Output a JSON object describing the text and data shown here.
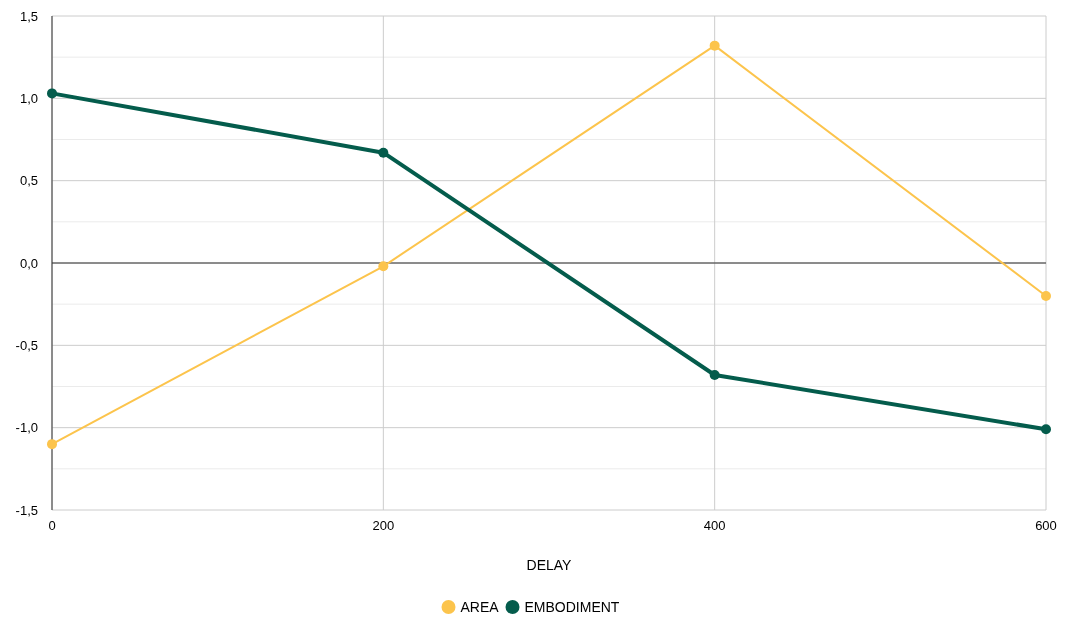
{
  "chart_data": {
    "type": "line",
    "xlabel": "DELAY",
    "x": [
      0,
      200,
      400,
      600
    ],
    "xlim": [
      0,
      600
    ],
    "xticks": [
      0,
      200,
      400,
      600
    ],
    "ylim": [
      -1.5,
      1.5
    ],
    "yticks": [
      {
        "value": -1.5,
        "label": "-1,5"
      },
      {
        "value": -1.25,
        "label": null
      },
      {
        "value": -1,
        "label": "-1,0"
      },
      {
        "value": -0.75,
        "label": null
      },
      {
        "value": -0.5,
        "label": "-0,5"
      },
      {
        "value": -0.25,
        "label": null
      },
      {
        "value": 0,
        "label": "0,0"
      },
      {
        "value": 0.25,
        "label": null
      },
      {
        "value": 0.5,
        "label": "0,5"
      },
      {
        "value": 0.75,
        "label": null
      },
      {
        "value": 1,
        "label": "1,0"
      },
      {
        "value": 1.25,
        "label": null
      },
      {
        "value": 1.5,
        "label": "1,5"
      }
    ],
    "grid": true,
    "legend": "bottom",
    "marker": "circle",
    "line_style": "solid",
    "series": [
      {
        "name": "AREA",
        "color": "#fcc44c",
        "values": [
          -1.1,
          -0.02,
          1.32,
          -0.2
        ]
      },
      {
        "name": "EMBODIMENT",
        "color": "#045c4c",
        "values": [
          1.03,
          0.67,
          -0.68,
          -1.01
        ]
      }
    ]
  }
}
